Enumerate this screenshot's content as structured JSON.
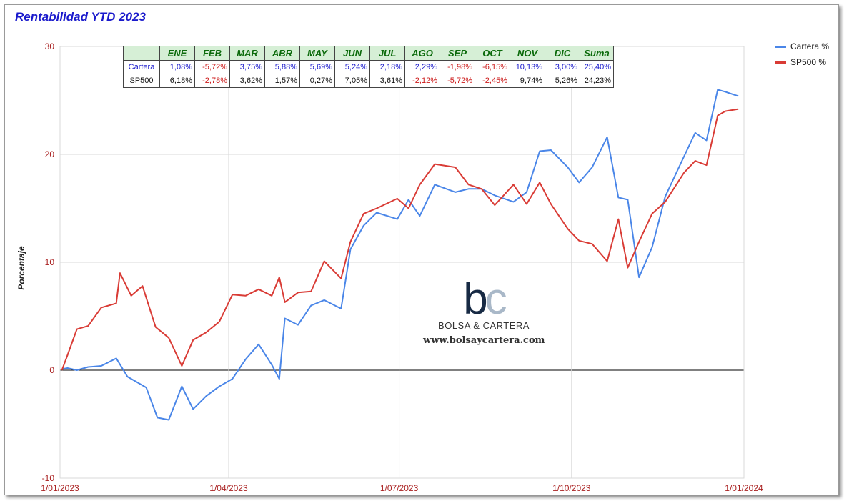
{
  "title": "Rentabilidad YTD 2023",
  "colors": {
    "cartera": "#4a86e8",
    "sp500": "#d93b35",
    "axis_text": "#aa2222",
    "grid": "#d9d9d9"
  },
  "logo": {
    "mark_b": "b",
    "mark_c": "c",
    "brand": "BOLSA & CARTERA",
    "url": "www.bolsaycartera.com"
  },
  "table": {
    "header": [
      "ENE",
      "FEB",
      "MAR",
      "ABR",
      "MAY",
      "JUN",
      "JUL",
      "AGO",
      "SEP",
      "OCT",
      "NOV",
      "DIC",
      "Suma"
    ],
    "rows": [
      {
        "label": "Cartera",
        "values": [
          "1,08%",
          "-5,72%",
          "3,75%",
          "5,88%",
          "5,69%",
          "5,24%",
          "2,18%",
          "2,29%",
          "-1,98%",
          "-6,15%",
          "10,13%",
          "3,00%",
          "25,40%"
        ]
      },
      {
        "label": "SP500",
        "values": [
          "6,18%",
          "-2,78%",
          "3,62%",
          "1,57%",
          "0,27%",
          "7,05%",
          "3,61%",
          "-2,12%",
          "-5,72%",
          "-2,45%",
          "9,74%",
          "5,26%",
          "24,23%"
        ]
      }
    ]
  },
  "chart_data": {
    "type": "line",
    "title": "Rentabilidad YTD 2023",
    "xlabel": "",
    "ylabel": "Porcentaje",
    "ylim": [
      -10,
      30
    ],
    "yticks": [
      "30",
      "20",
      "10",
      "0",
      "-10"
    ],
    "xticks": [
      "1/01/2023",
      "1/04/2023",
      "1/07/2023",
      "1/10/2023",
      "1/01/2024"
    ],
    "x_range": [
      "2023-01-01",
      "2024-01-01"
    ],
    "grid": true,
    "legend_position": "right",
    "series": [
      {
        "name": "Cartera %",
        "color": "#4a86e8",
        "x": [
          "2023-01-02",
          "2023-01-05",
          "2023-01-10",
          "2023-01-16",
          "2023-01-23",
          "2023-01-31",
          "2023-02-06",
          "2023-02-10",
          "2023-02-16",
          "2023-02-22",
          "2023-02-28",
          "2023-03-07",
          "2023-03-13",
          "2023-03-20",
          "2023-03-27",
          "2023-04-03",
          "2023-04-10",
          "2023-04-17",
          "2023-04-24",
          "2023-04-28",
          "2023-05-01",
          "2023-05-08",
          "2023-05-15",
          "2023-05-22",
          "2023-05-31",
          "2023-06-05",
          "2023-06-12",
          "2023-06-19",
          "2023-06-30",
          "2023-07-06",
          "2023-07-12",
          "2023-07-20",
          "2023-07-31",
          "2023-08-07",
          "2023-08-14",
          "2023-08-21",
          "2023-08-31",
          "2023-09-07",
          "2023-09-14",
          "2023-09-20",
          "2023-09-29",
          "2023-10-05",
          "2023-10-12",
          "2023-10-20",
          "2023-10-26",
          "2023-10-31",
          "2023-11-06",
          "2023-11-13",
          "2023-11-20",
          "2023-11-30",
          "2023-12-06",
          "2023-12-12",
          "2023-12-18",
          "2023-12-22",
          "2023-12-29"
        ],
        "y": [
          0.1,
          0.2,
          0.0,
          0.3,
          0.4,
          1.1,
          -0.6,
          -1.0,
          -1.6,
          -4.4,
          -4.6,
          -1.5,
          -3.6,
          -2.4,
          -1.5,
          -0.8,
          1.0,
          2.4,
          0.5,
          -0.8,
          4.8,
          4.2,
          6.0,
          6.5,
          5.7,
          11.2,
          13.4,
          14.6,
          14.0,
          15.8,
          14.3,
          17.2,
          16.5,
          16.8,
          16.8,
          16.2,
          15.6,
          16.5,
          20.3,
          20.4,
          18.8,
          17.4,
          18.8,
          21.6,
          16.0,
          15.8,
          8.6,
          11.4,
          16.1,
          19.8,
          22.0,
          21.3,
          26.0,
          25.8,
          25.4
        ]
      },
      {
        "name": "SP500 %",
        "color": "#d93b35",
        "x": [
          "2023-01-02",
          "2023-01-05",
          "2023-01-10",
          "2023-01-16",
          "2023-01-23",
          "2023-01-31",
          "2023-02-02",
          "2023-02-08",
          "2023-02-14",
          "2023-02-21",
          "2023-02-28",
          "2023-03-07",
          "2023-03-13",
          "2023-03-20",
          "2023-03-27",
          "2023-04-03",
          "2023-04-10",
          "2023-04-17",
          "2023-04-24",
          "2023-04-28",
          "2023-05-01",
          "2023-05-08",
          "2023-05-15",
          "2023-05-22",
          "2023-05-31",
          "2023-06-05",
          "2023-06-12",
          "2023-06-19",
          "2023-06-30",
          "2023-07-06",
          "2023-07-12",
          "2023-07-20",
          "2023-07-31",
          "2023-08-07",
          "2023-08-14",
          "2023-08-21",
          "2023-08-31",
          "2023-09-07",
          "2023-09-14",
          "2023-09-20",
          "2023-09-29",
          "2023-10-05",
          "2023-10-12",
          "2023-10-20",
          "2023-10-26",
          "2023-10-31",
          "2023-11-06",
          "2023-11-13",
          "2023-11-20",
          "2023-11-30",
          "2023-12-06",
          "2023-12-12",
          "2023-12-18",
          "2023-12-22",
          "2023-12-29"
        ],
        "y": [
          0.0,
          1.4,
          3.8,
          4.1,
          5.8,
          6.2,
          9.0,
          6.9,
          7.8,
          4.0,
          3.0,
          0.4,
          2.8,
          3.5,
          4.5,
          7.0,
          6.9,
          7.5,
          6.9,
          8.6,
          6.3,
          7.2,
          7.3,
          10.1,
          8.5,
          11.9,
          14.5,
          15.0,
          15.9,
          15.0,
          17.2,
          19.1,
          18.8,
          17.2,
          16.8,
          15.3,
          17.2,
          15.4,
          17.4,
          15.4,
          13.1,
          12.0,
          11.7,
          10.1,
          14.0,
          9.5,
          11.9,
          14.5,
          15.6,
          18.3,
          19.4,
          19.0,
          23.6,
          24.0,
          24.2
        ]
      }
    ]
  }
}
